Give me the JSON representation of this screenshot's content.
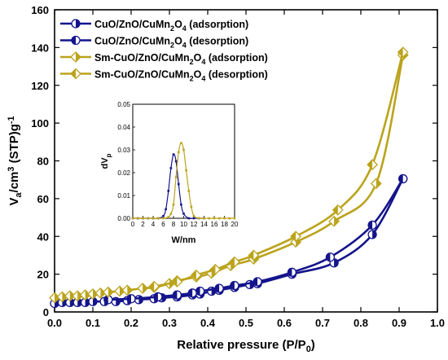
{
  "chart_data": [
    {
      "type": "line",
      "xlabel": "Relative pressure (P/P0)",
      "ylabel": "Va/cm3 (STP)g-1",
      "xlim": [
        0.0,
        1.0
      ],
      "ylim": [
        0,
        160
      ],
      "x_ticks": [
        "0.0",
        "0.1",
        "0.2",
        "0.3",
        "0.4",
        "0.5",
        "0.6",
        "0.7",
        "0.8",
        "0.9",
        "1.0"
      ],
      "y_ticks": [
        "0",
        "20",
        "40",
        "60",
        "80",
        "100",
        "120",
        "140",
        "160"
      ],
      "legend_position": "top-left",
      "grid": false,
      "series": [
        {
          "name": "CuO/ZnO/CuMn2O4 (adsorption)",
          "color": "#14148c",
          "marker": "half-circle",
          "x": [
            0.0,
            0.02,
            0.04,
            0.06,
            0.08,
            0.1,
            0.13,
            0.16,
            0.19,
            0.22,
            0.26,
            0.28,
            0.32,
            0.36,
            0.38,
            0.41,
            0.43,
            0.47,
            0.51,
            0.53,
            0.62,
            0.73,
            0.83,
            0.91
          ],
          "y": [
            4.5,
            5.0,
            5.0,
            5.0,
            5.0,
            5.5,
            5.5,
            5.5,
            6.0,
            6.5,
            7.0,
            7.5,
            8.0,
            9.0,
            9.5,
            11.0,
            11.5,
            13.0,
            14.5,
            15.0,
            20.0,
            26.0,
            41.0,
            70.5
          ]
        },
        {
          "name": "CuO/ZnO/CuMn2O4 (desorption)",
          "color": "#14148c",
          "marker": "half-circle-left",
          "x": [
            0.91,
            0.83,
            0.72,
            0.62,
            0.53,
            0.47,
            0.43,
            0.38,
            0.36,
            0.32,
            0.27,
            0.2,
            0.14
          ],
          "y": [
            70.5,
            46.0,
            29.0,
            21.0,
            16.0,
            14.0,
            12.5,
            11.0,
            10.0,
            9.0,
            8.0,
            7.0,
            6.5
          ]
        },
        {
          "name": "Sm-CuO/ZnO/CuMn2O4 (adsorption)",
          "color": "#bba31c",
          "marker": "half-diamond",
          "x": [
            0.0,
            0.02,
            0.04,
            0.06,
            0.08,
            0.1,
            0.12,
            0.14,
            0.17,
            0.19,
            0.23,
            0.26,
            0.3,
            0.32,
            0.37,
            0.41,
            0.46,
            0.52,
            0.63,
            0.73,
            0.84,
            0.91
          ],
          "y": [
            7.5,
            8.0,
            8.5,
            8.5,
            9.0,
            9.5,
            10.0,
            10.5,
            11.0,
            11.5,
            12.5,
            13.0,
            15.0,
            16.5,
            18.5,
            20.5,
            24.5,
            28.0,
            37.0,
            48.0,
            68.0,
            136.0
          ]
        },
        {
          "name": "Sm-CuO/ZnO/CuMn2O4 (desorption)",
          "color": "#bba31c",
          "marker": "half-diamond-left",
          "x": [
            0.91,
            0.83,
            0.74,
            0.63,
            0.52,
            0.47,
            0.42,
            0.37,
            0.32,
            0.26
          ],
          "y": [
            137.5,
            78.0,
            54.0,
            40.0,
            30.0,
            26.5,
            22.5,
            19.5,
            16.0,
            13.5
          ]
        }
      ]
    },
    {
      "type": "line",
      "xlabel": "W/nm",
      "ylabel": "dVp",
      "xlim": [
        0,
        20
      ],
      "ylim": [
        0,
        0.05
      ],
      "x_ticks": [
        "0",
        "2",
        "4",
        "6",
        "8",
        "10",
        "12",
        "14",
        "16",
        "18",
        "20"
      ],
      "y_ticks": [
        "0.00",
        "0.01",
        "0.02",
        "0.03",
        "0.04",
        "0.05"
      ],
      "series": [
        {
          "color": "#14148c",
          "x": [
            0,
            1,
            2,
            3,
            4,
            5,
            6,
            6.5,
            7,
            7.5,
            8,
            8.5,
            9,
            9.5,
            10,
            11,
            12,
            13,
            14
          ],
          "y": [
            0,
            0,
            0,
            0,
            0,
            0,
            0.001,
            0.004,
            0.012,
            0.022,
            0.028,
            0.025,
            0.015,
            0.006,
            0.002,
            0,
            0,
            0,
            0
          ]
        },
        {
          "color": "#bba31c",
          "x": [
            0,
            1,
            2,
            3,
            4,
            5,
            6,
            7,
            7.5,
            8,
            8.5,
            9,
            9.5,
            10,
            10.5,
            11,
            11.5,
            12,
            13,
            14,
            15,
            16,
            17,
            18,
            19,
            20
          ],
          "y": [
            0,
            0,
            0,
            0,
            0,
            0,
            0,
            0.0005,
            0.002,
            0.006,
            0.018,
            0.029,
            0.033,
            0.03,
            0.021,
            0.012,
            0.005,
            0.001,
            0,
            0,
            0,
            0,
            0,
            0,
            0,
            0
          ]
        }
      ]
    }
  ]
}
